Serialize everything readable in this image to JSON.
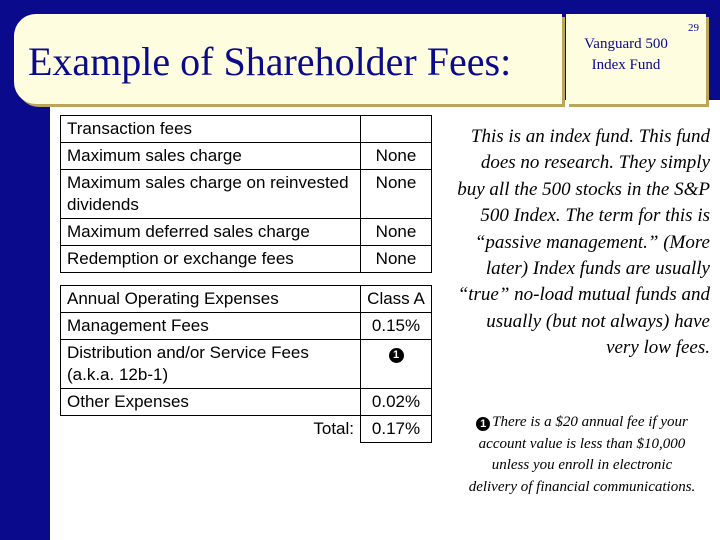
{
  "slide": {
    "title": "Example of Shareholder Fees:",
    "fund_label": "Vanguard 500 Index Fund",
    "slide_number": "29"
  },
  "transaction_fees": {
    "heading": "Transaction fees",
    "rows": [
      {
        "label": "Maximum sales charge",
        "value": "None"
      },
      {
        "label": "Maximum sales charge on reinvested dividends",
        "value": "None"
      },
      {
        "label": "Maximum deferred sales charge",
        "value": "None"
      },
      {
        "label": "Redemption or exchange fees",
        "value": "None"
      }
    ]
  },
  "operating_expenses": {
    "heading": "Annual Operating Expenses",
    "class_label": "Class A",
    "rows": [
      {
        "label": "Management Fees",
        "value": "0.15%"
      },
      {
        "label": "Distribution and/or Service Fees (a.k.a. 12b-1)",
        "value": "❶"
      },
      {
        "label": "Other Expenses",
        "value": "0.02%"
      }
    ],
    "total_label": "Total:",
    "total_value": "0.17%"
  },
  "side_note": "This is an index fund. This fund does no research. They simply buy all the 500 stocks in the S&P 500 Index. The term for this is “passive management.” (More later) Index funds are usually “true” no-load mutual funds and usually (but not always) have very low fees.",
  "footnote": {
    "marker": "1",
    "text": "There is a $20 annual fee if your account value is less than $10,000 unless you enroll in electronic delivery of financial communications."
  },
  "colors": {
    "navy": "#0a0a8c",
    "title_bg": "#fffde0",
    "shadow": "#b9a65a"
  }
}
